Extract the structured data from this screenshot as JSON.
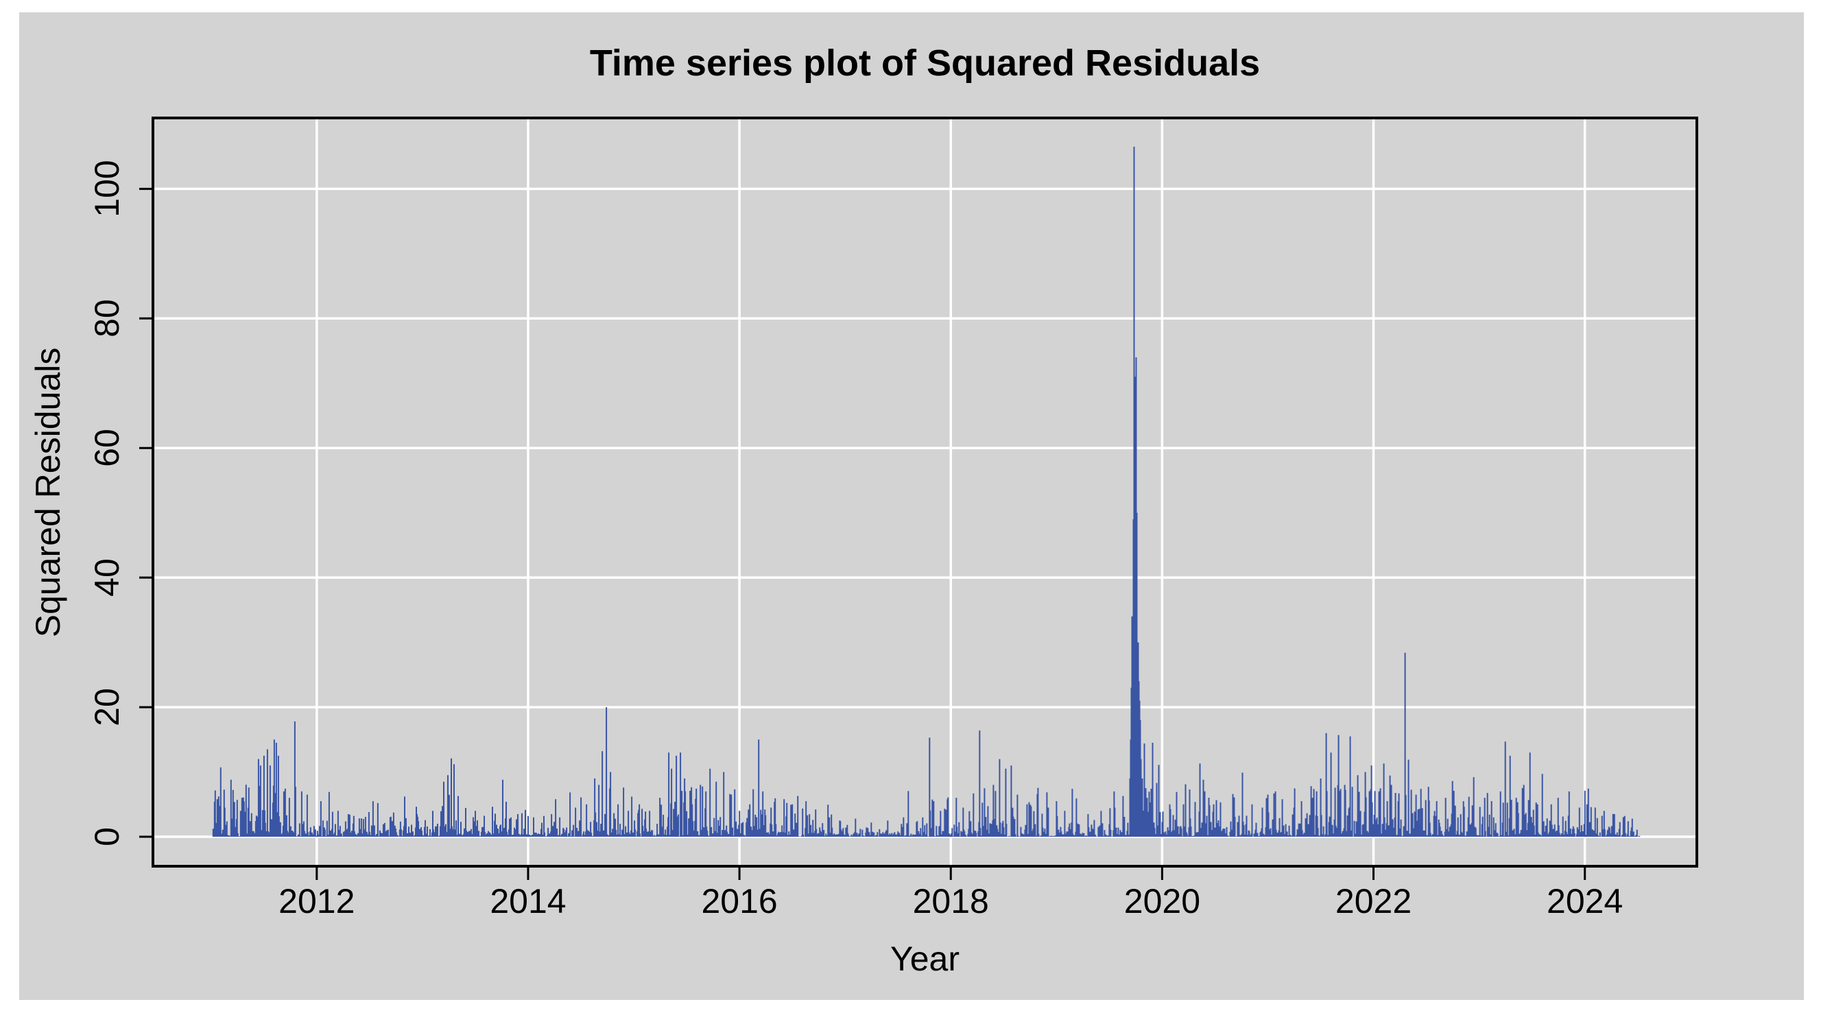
{
  "title": "Time series plot of Squared Residuals",
  "panel_background": "#d3d3d3",
  "page_background": "#ffffff",
  "chart_data": {
    "type": "line",
    "subtype": "vertical-spikes-from-zero",
    "title": "Time series plot of Squared Residuals",
    "xlabel": "Year",
    "ylabel": "Squared Residuals",
    "x_ticks": [
      2012,
      2014,
      2016,
      2018,
      2020,
      2022,
      2024
    ],
    "y_ticks": [
      0,
      20,
      40,
      60,
      80,
      100
    ],
    "xlim": [
      2010.45,
      2025.06
    ],
    "ylim": [
      -4.55,
      110.94
    ],
    "grid": true,
    "grid_color": "#ffffff",
    "axis_color": "#000000",
    "series_color": "#3a55a4",
    "background_color": "#d3d3d3",
    "x_start": 2011.02,
    "x_end": 2024.52,
    "points_per_year": 154,
    "seed": 1377,
    "baseline_floor": 0.05,
    "baseline_soft_cap": 7,
    "volatility_profile": [
      [
        2011.0,
        1.2
      ],
      [
        2011.5,
        1.6
      ],
      [
        2011.8,
        1.3
      ],
      [
        2012.1,
        0.95
      ],
      [
        2012.6,
        1.0
      ],
      [
        2013.0,
        0.9
      ],
      [
        2013.25,
        1.35
      ],
      [
        2013.6,
        1.0
      ],
      [
        2014.0,
        0.75
      ],
      [
        2014.45,
        0.9
      ],
      [
        2014.7,
        1.4
      ],
      [
        2015.0,
        1.0
      ],
      [
        2015.4,
        1.5
      ],
      [
        2015.8,
        1.35
      ],
      [
        2016.2,
        1.25
      ],
      [
        2016.6,
        1.0
      ],
      [
        2017.0,
        0.65
      ],
      [
        2017.5,
        0.6
      ],
      [
        2017.8,
        1.05
      ],
      [
        2018.1,
        1.0
      ],
      [
        2018.35,
        1.35
      ],
      [
        2018.6,
        1.25
      ],
      [
        2019.0,
        0.95
      ],
      [
        2019.4,
        0.8
      ],
      [
        2019.65,
        1.0
      ],
      [
        2019.74,
        2.6
      ],
      [
        2019.85,
        1.5
      ],
      [
        2020.1,
        1.2
      ],
      [
        2020.5,
        1.05
      ],
      [
        2021.0,
        1.05
      ],
      [
        2021.5,
        1.4
      ],
      [
        2021.9,
        1.35
      ],
      [
        2022.3,
        1.4
      ],
      [
        2022.7,
        1.1
      ],
      [
        2023.1,
        1.1
      ],
      [
        2023.4,
        1.3
      ],
      [
        2023.7,
        1.1
      ],
      [
        2024.0,
        0.9
      ],
      [
        2024.52,
        0.8
      ]
    ],
    "spikes": [
      [
        2011.06,
        5.8
      ],
      [
        2011.09,
        10.7
      ],
      [
        2011.13,
        4.5
      ],
      [
        2011.19,
        8.8
      ],
      [
        2011.28,
        4.0
      ],
      [
        2011.35,
        4.5
      ],
      [
        2011.45,
        12.0
      ],
      [
        2011.47,
        11.0
      ],
      [
        2011.5,
        12.5
      ],
      [
        2011.53,
        13.5
      ],
      [
        2011.56,
        11.0
      ],
      [
        2011.6,
        15.0
      ],
      [
        2011.62,
        14.5
      ],
      [
        2011.64,
        12.5
      ],
      [
        2011.69,
        7.0
      ],
      [
        2011.74,
        6.0
      ],
      [
        2011.79,
        17.8
      ],
      [
        2011.86,
        7.0
      ],
      [
        2011.91,
        6.5
      ],
      [
        2012.04,
        5.5
      ],
      [
        2012.12,
        6.9
      ],
      [
        2012.2,
        4.0
      ],
      [
        2012.3,
        3.5
      ],
      [
        2012.53,
        5.5
      ],
      [
        2012.58,
        5.2
      ],
      [
        2012.83,
        6.2
      ],
      [
        2012.95,
        3.5
      ],
      [
        2013.1,
        4.0
      ],
      [
        2013.2,
        8.5
      ],
      [
        2013.24,
        9.5
      ],
      [
        2013.27,
        12.1
      ],
      [
        2013.3,
        11.2
      ],
      [
        2013.34,
        6.3
      ],
      [
        2013.5,
        4.0
      ],
      [
        2013.76,
        8.8
      ],
      [
        2013.79,
        5.4
      ],
      [
        2013.9,
        3.5
      ],
      [
        2014.05,
        3.0
      ],
      [
        2014.15,
        3.2
      ],
      [
        2014.3,
        3.0
      ],
      [
        2014.45,
        4.5
      ],
      [
        2014.55,
        5.0
      ],
      [
        2014.63,
        9.0
      ],
      [
        2014.67,
        8.0
      ],
      [
        2014.7,
        13.2
      ],
      [
        2014.74,
        20.0
      ],
      [
        2014.78,
        10.0
      ],
      [
        2014.85,
        5.0
      ],
      [
        2014.95,
        4.0
      ],
      [
        2015.05,
        5.0
      ],
      [
        2015.15,
        4.0
      ],
      [
        2015.25,
        6.0
      ],
      [
        2015.33,
        13.0
      ],
      [
        2015.36,
        10.5
      ],
      [
        2015.4,
        12.5
      ],
      [
        2015.44,
        13.0
      ],
      [
        2015.48,
        9.0
      ],
      [
        2015.55,
        5.0
      ],
      [
        2015.63,
        8.0
      ],
      [
        2015.68,
        7.0
      ],
      [
        2015.72,
        10.5
      ],
      [
        2015.78,
        8.5
      ],
      [
        2015.85,
        10.0
      ],
      [
        2015.92,
        6.5
      ],
      [
        2016.0,
        4.0
      ],
      [
        2016.1,
        5.0
      ],
      [
        2016.18,
        15.0
      ],
      [
        2016.22,
        7.0
      ],
      [
        2016.3,
        4.5
      ],
      [
        2016.42,
        5.8
      ],
      [
        2016.5,
        5.0
      ],
      [
        2016.55,
        6.3
      ],
      [
        2016.63,
        5.5
      ],
      [
        2016.72,
        4.2
      ],
      [
        2016.85,
        3.0
      ],
      [
        2016.95,
        2.5
      ],
      [
        2017.1,
        2.8
      ],
      [
        2017.25,
        2.2
      ],
      [
        2017.4,
        2.5
      ],
      [
        2017.55,
        3.0
      ],
      [
        2017.68,
        2.4
      ],
      [
        2017.8,
        15.3
      ],
      [
        2017.84,
        5.5
      ],
      [
        2017.9,
        4.0
      ],
      [
        2017.97,
        5.8
      ],
      [
        2018.05,
        6.0
      ],
      [
        2018.12,
        4.5
      ],
      [
        2018.27,
        16.4
      ],
      [
        2018.32,
        7.5
      ],
      [
        2018.4,
        8.0
      ],
      [
        2018.46,
        12.0
      ],
      [
        2018.52,
        10.5
      ],
      [
        2018.57,
        11.0
      ],
      [
        2018.63,
        6.5
      ],
      [
        2018.72,
        5.0
      ],
      [
        2018.82,
        6.6
      ],
      [
        2018.92,
        4.5
      ],
      [
        2019.0,
        5.5
      ],
      [
        2019.08,
        4.0
      ],
      [
        2019.15,
        7.4
      ],
      [
        2019.19,
        5.9
      ],
      [
        2019.3,
        3.5
      ],
      [
        2019.42,
        4.0
      ],
      [
        2019.55,
        4.5
      ],
      [
        2019.63,
        6.3
      ],
      [
        2019.695,
        9.0
      ],
      [
        2019.702,
        15.0
      ],
      [
        2019.71,
        23.0
      ],
      [
        2019.718,
        34.0
      ],
      [
        2019.726,
        49.0
      ],
      [
        2019.734,
        106.5
      ],
      [
        2019.742,
        45.0
      ],
      [
        2019.749,
        71.0
      ],
      [
        2019.756,
        74.0
      ],
      [
        2019.763,
        50.0
      ],
      [
        2019.77,
        30.0
      ],
      [
        2019.778,
        24.0
      ],
      [
        2019.785,
        21.0
      ],
      [
        2019.793,
        18.0
      ],
      [
        2019.8,
        12.0
      ],
      [
        2019.81,
        9.0
      ],
      [
        2019.83,
        14.4
      ],
      [
        2019.86,
        6.0
      ],
      [
        2019.91,
        14.5
      ],
      [
        2019.95,
        8.3
      ],
      [
        2019.97,
        11.1
      ],
      [
        2020.07,
        5.0
      ],
      [
        2020.14,
        6.9
      ],
      [
        2020.22,
        8.1
      ],
      [
        2020.26,
        7.3
      ],
      [
        2020.36,
        11.3
      ],
      [
        2020.39,
        8.8
      ],
      [
        2020.49,
        5.0
      ],
      [
        2020.55,
        5.3
      ],
      [
        2020.67,
        6.6
      ],
      [
        2020.76,
        9.9
      ],
      [
        2020.85,
        5.0
      ],
      [
        2020.95,
        4.5
      ],
      [
        2021.0,
        6.5
      ],
      [
        2021.07,
        7.0
      ],
      [
        2021.14,
        5.8
      ],
      [
        2021.25,
        4.5
      ],
      [
        2021.32,
        5.5
      ],
      [
        2021.42,
        6.0
      ],
      [
        2021.5,
        9.0
      ],
      [
        2021.55,
        16.0
      ],
      [
        2021.6,
        13.0
      ],
      [
        2021.67,
        15.7
      ],
      [
        2021.73,
        8.0
      ],
      [
        2021.78,
        15.5
      ],
      [
        2021.85,
        9.5
      ],
      [
        2021.92,
        10.0
      ],
      [
        2021.98,
        11.0
      ],
      [
        2022.05,
        7.0
      ],
      [
        2022.1,
        11.3
      ],
      [
        2022.17,
        8.0
      ],
      [
        2022.3,
        28.4
      ],
      [
        2022.33,
        11.9
      ],
      [
        2022.4,
        6.5
      ],
      [
        2022.45,
        7.4
      ],
      [
        2022.52,
        7.7
      ],
      [
        2022.6,
        5.5
      ],
      [
        2022.68,
        6.0
      ],
      [
        2022.75,
        8.6
      ],
      [
        2022.85,
        5.5
      ],
      [
        2022.95,
        9.2
      ],
      [
        2023.05,
        6.0
      ],
      [
        2023.12,
        5.5
      ],
      [
        2023.2,
        7.0
      ],
      [
        2023.25,
        14.7
      ],
      [
        2023.29,
        12.5
      ],
      [
        2023.35,
        6.0
      ],
      [
        2023.42,
        8.0
      ],
      [
        2023.48,
        13.0
      ],
      [
        2023.55,
        5.0
      ],
      [
        2023.6,
        9.7
      ],
      [
        2023.68,
        5.0
      ],
      [
        2023.75,
        6.0
      ],
      [
        2023.85,
        7.0
      ],
      [
        2023.95,
        4.5
      ],
      [
        2024.02,
        5.0
      ],
      [
        2024.1,
        4.5
      ],
      [
        2024.18,
        4.0
      ],
      [
        2024.28,
        3.5
      ],
      [
        2024.38,
        3.2
      ],
      [
        2024.45,
        2.8
      ]
    ]
  }
}
